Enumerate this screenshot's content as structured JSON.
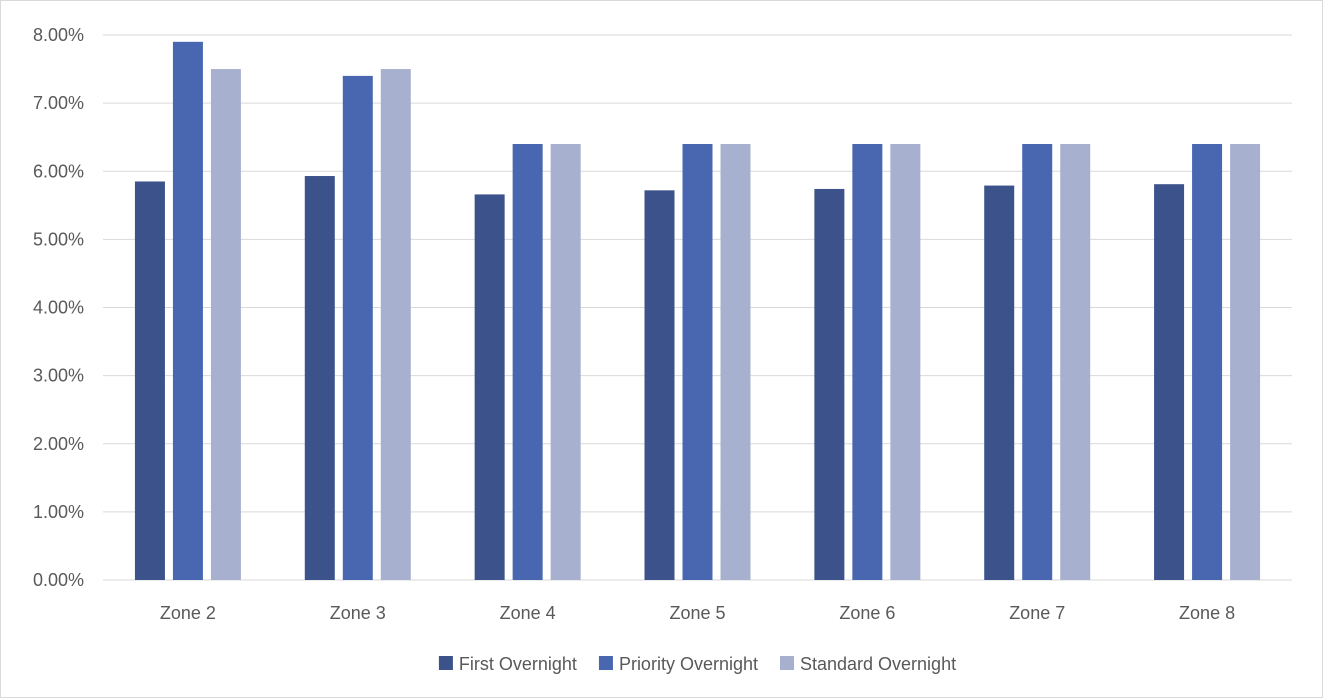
{
  "chart_data": {
    "type": "bar",
    "title": "",
    "xlabel": "",
    "ylabel": "",
    "categories": [
      "Zone 2",
      "Zone 3",
      "Zone 4",
      "Zone 5",
      "Zone 6",
      "Zone 7",
      "Zone 8"
    ],
    "series": [
      {
        "name": "First Overnight",
        "color": "#3c528b",
        "values": [
          5.85,
          5.93,
          5.66,
          5.72,
          5.74,
          5.79,
          5.81
        ]
      },
      {
        "name": "Priority Overnight",
        "color": "#4867b0",
        "values": [
          7.9,
          7.4,
          6.4,
          6.4,
          6.4,
          6.4,
          6.4
        ]
      },
      {
        "name": "Standard Overnight",
        "color": "#a7b0cf",
        "values": [
          7.5,
          7.5,
          6.4,
          6.4,
          6.4,
          6.4,
          6.4
        ]
      }
    ],
    "ylim": [
      0,
      8
    ],
    "ytick_values": [
      0,
      1,
      2,
      3,
      4,
      5,
      6,
      7,
      8
    ],
    "ytick_labels": [
      "0.00%",
      "1.00%",
      "2.00%",
      "3.00%",
      "4.00%",
      "5.00%",
      "6.00%",
      "7.00%",
      "8.00%"
    ],
    "grid": true,
    "legend_position": "bottom",
    "gridline_color": "#d9d9d9"
  }
}
